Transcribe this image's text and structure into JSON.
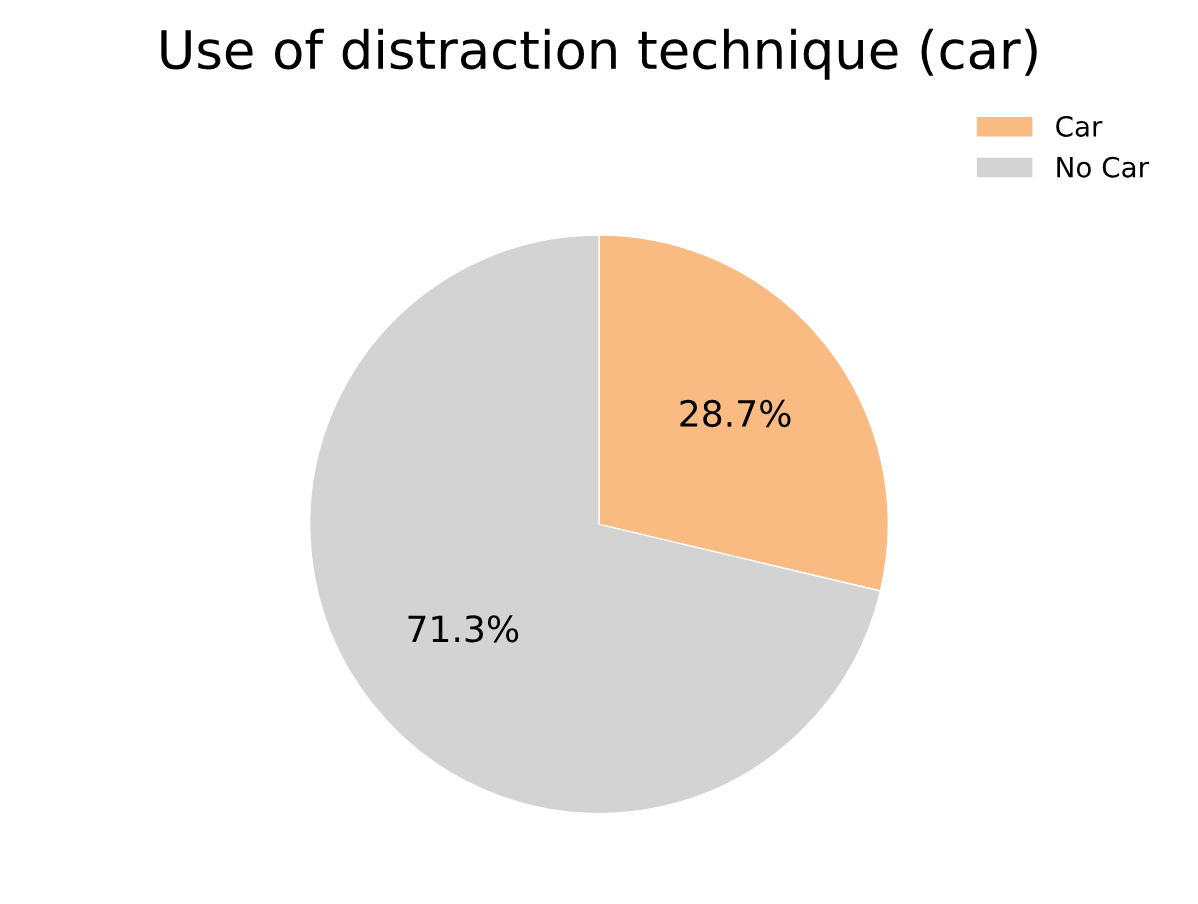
{
  "chart_data": {
    "type": "pie",
    "title": "Use of distraction technique (car)",
    "categories": [
      "Car",
      "No Car"
    ],
    "values": [
      28.7,
      71.3
    ],
    "colors": [
      "#f9bb82",
      "#d3d3d3"
    ],
    "value_labels": [
      "28.7%",
      "71.3%"
    ],
    "legend": "top right"
  }
}
